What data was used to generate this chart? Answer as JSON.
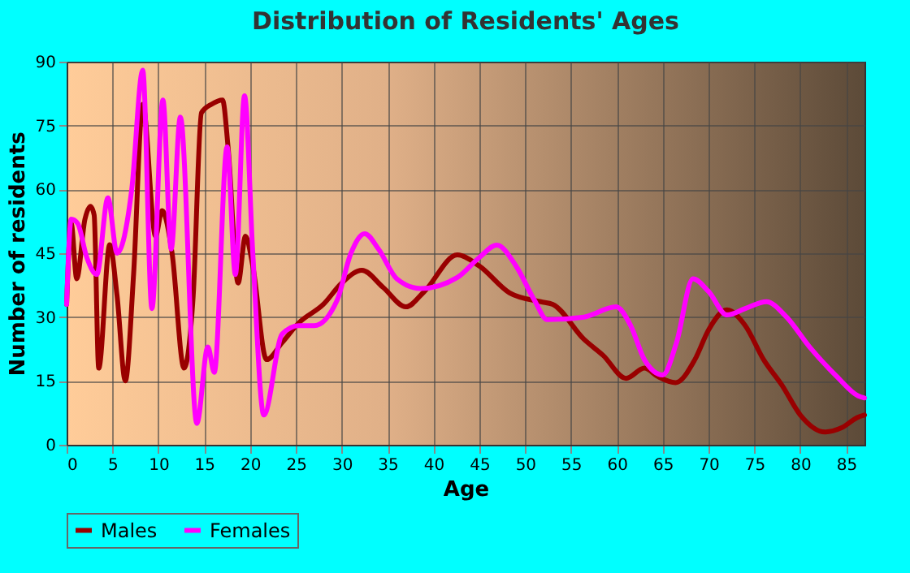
{
  "chart_data": {
    "type": "line",
    "title": "Distribution of Residents' Ages",
    "xlabel": "Age",
    "ylabel": "Number of residents",
    "xlim": [
      0,
      87
    ],
    "xticks": [
      0,
      5,
      10,
      15,
      20,
      25,
      30,
      35,
      40,
      45,
      50,
      55,
      60,
      65,
      70,
      75,
      80,
      85
    ],
    "ylim": [
      0,
      90
    ],
    "yticks": [
      0,
      15,
      30,
      45,
      60,
      75,
      90
    ],
    "grid": true,
    "legend": "bottom",
    "series": [
      {
        "name": "Males",
        "color": "#990000",
        "x": [
          0,
          0.5,
          1.1,
          2,
          2.6,
          3,
          3.5,
          4.7,
          5.5,
          6.4,
          7.3,
          8.3,
          9.7,
          10.4,
          11.5,
          12.8,
          13.8,
          14.7,
          15.8,
          17,
          17.6,
          18.7,
          19.5,
          20.3,
          21.8,
          23.5,
          25.3,
          28,
          30,
          32.2,
          34.5,
          37,
          39,
          42.6,
          45,
          48.3,
          51.7,
          53,
          56.4,
          58.5,
          61,
          63,
          64.5,
          66.4,
          68.5,
          70,
          72,
          74,
          76,
          78,
          80,
          82.7,
          84.5,
          86.3,
          87
        ],
        "values": [
          33,
          52,
          39,
          53,
          56,
          54,
          18,
          47,
          35,
          15,
          40,
          80,
          49,
          55,
          45,
          18,
          35,
          78,
          80,
          81,
          70,
          38,
          49,
          42,
          20,
          24,
          28.6,
          33,
          38,
          41,
          37,
          32.4,
          36,
          44.6,
          42,
          35.7,
          33.6,
          33,
          24.8,
          21,
          15.6,
          18,
          16,
          14.6,
          20,
          27,
          31.7,
          28,
          20,
          14,
          7,
          3,
          4,
          6.5,
          7
        ]
      },
      {
        "name": "Females",
        "color": "#ff00ff",
        "x": [
          0,
          0.5,
          1.2,
          2.2,
          3.3,
          4.5,
          5.5,
          7.1,
          8.3,
          9.3,
          10.5,
          11.4,
          12.4,
          14.2,
          15.4,
          16.1,
          17.5,
          18.4,
          19.4,
          20.3,
          21.5,
          23.5,
          25.3,
          27,
          29.5,
          31,
          32.5,
          34,
          36,
          38.6,
          42.6,
          45,
          46.9,
          49,
          51,
          52.4,
          56.4,
          59.9,
          61.5,
          63,
          65,
          66.5,
          68.3,
          70,
          72,
          74,
          76.3,
          78.5,
          81,
          84,
          86.3,
          87
        ],
        "values": [
          33,
          53,
          52,
          44,
          40,
          58,
          45,
          60,
          88,
          32,
          81,
          46,
          77,
          5,
          23,
          17,
          70,
          40,
          82,
          45,
          7,
          26,
          28,
          28,
          34,
          45,
          49.6,
          46,
          39,
          36.7,
          39.3,
          44,
          46.9,
          42,
          34,
          29.4,
          30,
          32.4,
          28,
          20,
          16.4,
          24,
          39,
          36,
          30.5,
          32,
          33.6,
          30,
          23,
          16,
          11.5,
          11
        ]
      }
    ]
  }
}
